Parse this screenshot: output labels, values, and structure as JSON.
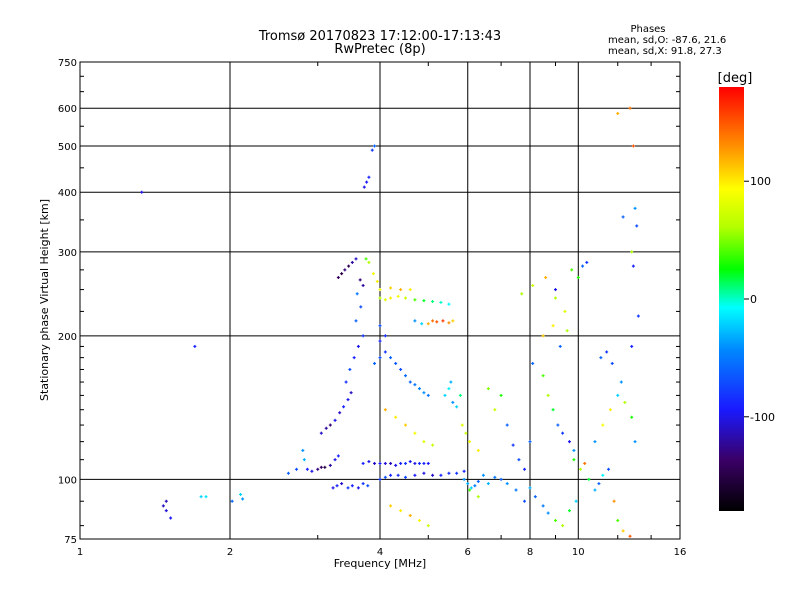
{
  "chart_data": {
    "type": "scatter",
    "title": "Tromsø 20170823 17:12:00-17:13:43",
    "subtitle": "RwPretec (8p)",
    "phase_info": {
      "heading": "Phases",
      "line_o": "mean, sd,O: -87.6, 21.6",
      "line_x": "mean, sd,X:  91.8, 27.3"
    },
    "xlabel": "Frequency [MHz]",
    "ylabel": "Stationary phase Virtual Height [km]",
    "xscale": "log",
    "yscale": "log",
    "xlim": [
      1,
      16
    ],
    "ylim": [
      75,
      750
    ],
    "grid": true,
    "xticks": [
      1,
      2,
      4,
      6,
      8,
      10,
      16
    ],
    "xtick_labels": [
      "1",
      "2",
      "4",
      "6",
      "8",
      "10",
      "16"
    ],
    "yticks": [
      75,
      100,
      200,
      300,
      400,
      500,
      600,
      750
    ],
    "ytick_labels": [
      "75",
      "100",
      "200",
      "300",
      "400",
      "500",
      "600",
      "750"
    ],
    "colorbar": {
      "label": "[deg]",
      "ticks": [
        100,
        0,
        -100
      ],
      "tick_labels": [
        "100",
        "0",
        "-100"
      ],
      "range": [
        -180,
        180
      ]
    },
    "points": [
      [
        1.33,
        400,
        -100
      ],
      [
        1.47,
        88,
        -110
      ],
      [
        1.49,
        90,
        -115
      ],
      [
        1.49,
        86,
        -105
      ],
      [
        1.52,
        83,
        -95
      ],
      [
        1.7,
        190,
        -90
      ],
      [
        1.75,
        92,
        -20
      ],
      [
        1.79,
        92,
        -15
      ],
      [
        2.02,
        90,
        -60
      ],
      [
        2.1,
        93,
        -20
      ],
      [
        2.12,
        91,
        -40
      ],
      [
        2.62,
        103,
        -60
      ],
      [
        2.72,
        105,
        -70
      ],
      [
        2.8,
        115,
        -40
      ],
      [
        2.82,
        110,
        -30
      ],
      [
        2.86,
        105,
        -90
      ],
      [
        2.92,
        104,
        -100
      ],
      [
        3.0,
        105,
        -130
      ],
      [
        3.05,
        106,
        -140
      ],
      [
        3.1,
        106,
        -150
      ],
      [
        3.18,
        107,
        -120
      ],
      [
        3.25,
        110,
        -100
      ],
      [
        3.3,
        112,
        -90
      ],
      [
        3.22,
        96,
        -100
      ],
      [
        3.28,
        97,
        -90
      ],
      [
        3.35,
        98,
        -110
      ],
      [
        3.45,
        96,
        -80
      ],
      [
        3.52,
        97,
        -90
      ],
      [
        3.62,
        96,
        -100
      ],
      [
        3.7,
        98,
        -80
      ],
      [
        3.78,
        97,
        -70
      ],
      [
        3.05,
        125,
        -110
      ],
      [
        3.12,
        128,
        -120
      ],
      [
        3.18,
        130,
        -130
      ],
      [
        3.25,
        133,
        -100
      ],
      [
        3.32,
        138,
        -110
      ],
      [
        3.38,
        142,
        -90
      ],
      [
        3.45,
        147,
        -100
      ],
      [
        3.5,
        152,
        -110
      ],
      [
        3.42,
        160,
        -85
      ],
      [
        3.48,
        170,
        -70
      ],
      [
        3.55,
        180,
        -90
      ],
      [
        3.62,
        190,
        -100
      ],
      [
        3.7,
        200,
        -80
      ],
      [
        3.58,
        215,
        -60
      ],
      [
        3.66,
        230,
        -70
      ],
      [
        3.6,
        245,
        -50
      ],
      [
        3.3,
        265,
        -140
      ],
      [
        3.35,
        270,
        -150
      ],
      [
        3.4,
        275,
        -130
      ],
      [
        3.46,
        280,
        -145
      ],
      [
        3.52,
        285,
        -120
      ],
      [
        3.58,
        290,
        -110
      ],
      [
        3.65,
        262,
        -130
      ],
      [
        3.7,
        255,
        -120
      ],
      [
        3.75,
        290,
        40
      ],
      [
        3.8,
        285,
        60
      ],
      [
        3.88,
        270,
        90
      ],
      [
        3.95,
        260,
        100
      ],
      [
        3.72,
        410,
        -100
      ],
      [
        3.76,
        420,
        -95
      ],
      [
        3.8,
        430,
        -90
      ],
      [
        3.86,
        490,
        -80
      ],
      [
        3.9,
        500,
        -60
      ],
      [
        3.7,
        108,
        -90
      ],
      [
        3.8,
        109,
        -100
      ],
      [
        3.9,
        108,
        -110
      ],
      [
        4.0,
        108,
        -95
      ],
      [
        4.1,
        108,
        -105
      ],
      [
        4.2,
        108,
        -115
      ],
      [
        4.3,
        107,
        -100
      ],
      [
        4.4,
        108,
        -90
      ],
      [
        4.5,
        108,
        -80
      ],
      [
        4.6,
        109,
        -95
      ],
      [
        4.7,
        108,
        -100
      ],
      [
        4.8,
        108,
        -85
      ],
      [
        4.9,
        108,
        -90
      ],
      [
        5.0,
        108,
        -95
      ],
      [
        4.0,
        100,
        -80
      ],
      [
        4.1,
        101,
        -70
      ],
      [
        4.2,
        102,
        -90
      ],
      [
        4.35,
        102,
        -85
      ],
      [
        4.5,
        101,
        -75
      ],
      [
        4.7,
        102,
        -95
      ],
      [
        4.9,
        103,
        -100
      ],
      [
        5.1,
        102,
        -110
      ],
      [
        5.3,
        102,
        -90
      ],
      [
        5.5,
        103,
        -85
      ],
      [
        5.7,
        103,
        -80
      ],
      [
        5.9,
        104,
        -90
      ],
      [
        3.9,
        175,
        -60
      ],
      [
        4.0,
        180,
        -70
      ],
      [
        4.1,
        185,
        -80
      ],
      [
        4.2,
        180,
        -60
      ],
      [
        4.3,
        175,
        -65
      ],
      [
        4.4,
        170,
        -70
      ],
      [
        4.5,
        165,
        -55
      ],
      [
        4.6,
        160,
        -60
      ],
      [
        4.7,
        158,
        -50
      ],
      [
        4.8,
        155,
        -45
      ],
      [
        4.9,
        152,
        -40
      ],
      [
        5.0,
        150,
        -50
      ],
      [
        4.0,
        195,
        -90
      ],
      [
        4.1,
        200,
        -85
      ],
      [
        4.0,
        210,
        -70
      ],
      [
        4.1,
        140,
        120
      ],
      [
        4.3,
        135,
        100
      ],
      [
        4.5,
        130,
        110
      ],
      [
        4.7,
        125,
        90
      ],
      [
        4.9,
        120,
        80
      ],
      [
        5.1,
        118,
        70
      ],
      [
        4.2,
        88,
        110
      ],
      [
        4.4,
        86,
        100
      ],
      [
        4.6,
        84,
        120
      ],
      [
        4.8,
        82,
        90
      ],
      [
        5.0,
        80,
        70
      ],
      [
        4.0,
        240,
        60
      ],
      [
        4.1,
        238,
        80
      ],
      [
        4.2,
        240,
        100
      ],
      [
        4.35,
        242,
        90
      ],
      [
        4.5,
        240,
        70
      ],
      [
        4.7,
        238,
        40
      ],
      [
        4.9,
        237,
        20
      ],
      [
        5.1,
        236,
        10
      ],
      [
        5.3,
        235,
        0
      ],
      [
        5.5,
        233,
        -10
      ],
      [
        4.0,
        250,
        90
      ],
      [
        4.2,
        252,
        110
      ],
      [
        4.4,
        250,
        120
      ],
      [
        4.6,
        250,
        100
      ],
      [
        4.7,
        215,
        -40
      ],
      [
        4.85,
        212,
        -20
      ],
      [
        5.0,
        212,
        120
      ],
      [
        5.1,
        215,
        140
      ],
      [
        5.2,
        214,
        150
      ],
      [
        5.35,
        215,
        160
      ],
      [
        5.5,
        213,
        130
      ],
      [
        5.6,
        215,
        110
      ],
      [
        5.4,
        150,
        -20
      ],
      [
        5.5,
        155,
        -10
      ],
      [
        5.55,
        160,
        -30
      ],
      [
        5.6,
        145,
        -40
      ],
      [
        5.7,
        142,
        -20
      ],
      [
        5.8,
        150,
        10
      ],
      [
        5.85,
        130,
        80
      ],
      [
        5.95,
        125,
        70
      ],
      [
        6.05,
        120,
        90
      ],
      [
        6.3,
        115,
        100
      ],
      [
        5.9,
        100,
        -40
      ],
      [
        6.0,
        98,
        -30
      ],
      [
        6.1,
        96,
        -20
      ],
      [
        6.2,
        97,
        -50
      ],
      [
        6.3,
        99,
        -60
      ],
      [
        6.45,
        102,
        -40
      ],
      [
        6.6,
        98,
        -30
      ],
      [
        6.8,
        101,
        -50
      ],
      [
        6.05,
        95,
        40
      ],
      [
        6.3,
        92,
        60
      ],
      [
        6.6,
        155,
        50
      ],
      [
        6.8,
        140,
        70
      ],
      [
        7.0,
        150,
        30
      ],
      [
        7.2,
        130,
        -60
      ],
      [
        7.4,
        118,
        -80
      ],
      [
        7.6,
        110,
        -70
      ],
      [
        7.8,
        105,
        -90
      ],
      [
        8.0,
        120,
        -60
      ],
      [
        7.0,
        100,
        -60
      ],
      [
        7.2,
        98,
        -40
      ],
      [
        7.5,
        95,
        -50
      ],
      [
        7.8,
        90,
        -70
      ],
      [
        8.0,
        96,
        -30
      ],
      [
        8.2,
        92,
        -60
      ],
      [
        8.5,
        88,
        -50
      ],
      [
        8.7,
        85,
        -40
      ],
      [
        9.0,
        82,
        40
      ],
      [
        9.3,
        80,
        60
      ],
      [
        9.6,
        86,
        20
      ],
      [
        9.9,
        90,
        -20
      ],
      [
        8.1,
        175,
        -60
      ],
      [
        8.5,
        165,
        40
      ],
      [
        8.7,
        150,
        60
      ],
      [
        8.9,
        140,
        20
      ],
      [
        9.1,
        130,
        -60
      ],
      [
        9.3,
        125,
        -80
      ],
      [
        9.6,
        120,
        -100
      ],
      [
        9.8,
        115,
        -40
      ],
      [
        7.7,
        245,
        60
      ],
      [
        8.1,
        255,
        70
      ],
      [
        8.6,
        265,
        120
      ],
      [
        9.0,
        250,
        -100
      ],
      [
        9.0,
        240,
        60
      ],
      [
        9.4,
        225,
        80
      ],
      [
        9.7,
        275,
        40
      ],
      [
        10.0,
        265,
        30
      ],
      [
        10.2,
        280,
        -60
      ],
      [
        10.4,
        285,
        -80
      ],
      [
        8.5,
        200,
        110
      ],
      [
        8.9,
        210,
        100
      ],
      [
        9.2,
        190,
        -60
      ],
      [
        9.5,
        205,
        60
      ],
      [
        9.8,
        110,
        30
      ],
      [
        10.1,
        105,
        60
      ],
      [
        10.3,
        108,
        140
      ],
      [
        10.5,
        100,
        20
      ],
      [
        10.8,
        95,
        -30
      ],
      [
        11.0,
        98,
        -60
      ],
      [
        11.2,
        102,
        -10
      ],
      [
        11.5,
        105,
        -70
      ],
      [
        11.8,
        90,
        130
      ],
      [
        12.0,
        82,
        40
      ],
      [
        12.3,
        78,
        110
      ],
      [
        12.7,
        76,
        150
      ],
      [
        10.8,
        120,
        -40
      ],
      [
        11.2,
        130,
        90
      ],
      [
        11.6,
        140,
        100
      ],
      [
        12.0,
        150,
        -20
      ],
      [
        12.4,
        145,
        60
      ],
      [
        12.8,
        135,
        30
      ],
      [
        13.0,
        120,
        -40
      ],
      [
        11.1,
        180,
        -60
      ],
      [
        11.4,
        185,
        -80
      ],
      [
        11.7,
        175,
        -70
      ],
      [
        12.2,
        160,
        -40
      ],
      [
        12.8,
        190,
        -90
      ],
      [
        13.2,
        220,
        -80
      ],
      [
        12.0,
        585,
        120
      ],
      [
        12.7,
        600,
        140
      ],
      [
        12.9,
        500,
        150
      ],
      [
        12.3,
        355,
        -60
      ],
      [
        13.0,
        370,
        -40
      ],
      [
        13.1,
        340,
        -70
      ],
      [
        12.8,
        300,
        60
      ],
      [
        12.9,
        280,
        -90
      ]
    ]
  }
}
